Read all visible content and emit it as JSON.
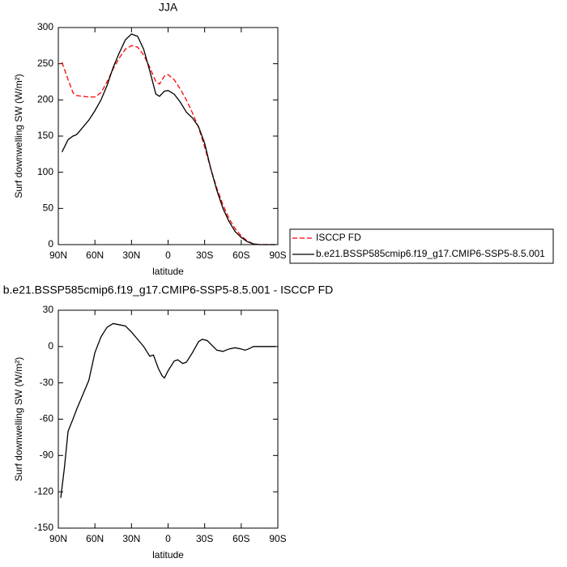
{
  "chart_data": [
    {
      "type": "line",
      "title": "JJA",
      "xlabel": "latitude",
      "ylabel": "Surf downwelling SW (W/m²)",
      "x": [
        87,
        82,
        78,
        75,
        70,
        65,
        60,
        55,
        50,
        45,
        40,
        35,
        30,
        25,
        20,
        15,
        10,
        7,
        3,
        0,
        -5,
        -10,
        -15,
        -20,
        -25,
        -30,
        -35,
        -40,
        -45,
        -50,
        -55,
        -60,
        -65,
        -70,
        -75,
        -80,
        -85,
        -88
      ],
      "series": [
        {
          "name": "ISCCP FD",
          "color": "#ff0000",
          "dashed": true,
          "values": [
            252,
            228,
            210,
            206,
            205,
            204,
            204,
            210,
            225,
            243,
            258,
            270,
            275,
            273,
            262,
            245,
            225,
            222,
            233,
            235,
            228,
            215,
            200,
            182,
            162,
            135,
            105,
            78,
            55,
            36,
            22,
            12,
            5,
            1,
            0,
            0,
            0,
            0
          ]
        },
        {
          "name": "b.e21.BSSP585cmip6.f19_g17.CMIP6-SSP5-8.5.001",
          "color": "#000000",
          "dashed": false,
          "values": [
            128,
            145,
            150,
            152,
            162,
            172,
            185,
            200,
            220,
            245,
            265,
            283,
            291,
            288,
            270,
            240,
            208,
            205,
            212,
            213,
            208,
            197,
            183,
            175,
            163,
            140,
            105,
            75,
            50,
            32,
            18,
            10,
            4,
            1,
            0,
            0,
            0,
            0
          ]
        }
      ],
      "xlim": [
        90,
        -90
      ],
      "xticks": [
        {
          "value": 90,
          "label": "90N"
        },
        {
          "value": 60,
          "label": "60N"
        },
        {
          "value": 30,
          "label": "30N"
        },
        0,
        {
          "value": -30,
          "label": "30S"
        },
        {
          "value": -60,
          "label": "60S"
        },
        {
          "value": -90,
          "label": "90S"
        }
      ],
      "ylim": [
        0,
        300
      ],
      "yticks": [
        0,
        50,
        100,
        150,
        200,
        250,
        300
      ],
      "legend": "right"
    },
    {
      "type": "line",
      "title": "b.e21.BSSP585cmip6.f19_g17.CMIP6-SSP5-8.5.001 - ISCCP FD",
      "xlabel": "latitude",
      "ylabel": "Surf downwelling SW (W/m²)",
      "x": [
        88,
        85,
        82,
        78,
        75,
        70,
        65,
        60,
        55,
        50,
        45,
        40,
        35,
        30,
        25,
        20,
        15,
        12,
        8,
        5,
        3,
        0,
        -5,
        -8,
        -12,
        -15,
        -20,
        -25,
        -28,
        -32,
        -35,
        -40,
        -45,
        -50,
        -55,
        -60,
        -63,
        -66,
        -70,
        -75,
        -80,
        -88
      ],
      "series": [
        {
          "color": "#000000",
          "dashed": false,
          "values": [
            -125,
            -100,
            -70,
            -60,
            -52,
            -40,
            -28,
            -5,
            8,
            16,
            19,
            18,
            17,
            12,
            6,
            0,
            -8,
            -7,
            -18,
            -24,
            -26,
            -20,
            -12,
            -11,
            -14,
            -13,
            -5,
            4,
            6,
            5,
            2,
            -3,
            -4,
            -2,
            -1,
            -2,
            -3,
            -2,
            0,
            0,
            0,
            0
          ]
        }
      ],
      "xlim": [
        90,
        -90
      ],
      "xticks": [
        {
          "value": 90,
          "label": "90N"
        },
        {
          "value": 60,
          "label": "60N"
        },
        {
          "value": 30,
          "label": "30N"
        },
        0,
        {
          "value": -30,
          "label": "30S"
        },
        {
          "value": -60,
          "label": "60S"
        },
        {
          "value": -90,
          "label": "90S"
        }
      ],
      "ylim": [
        -150,
        30
      ],
      "yticks": [
        -150,
        -120,
        -90,
        -60,
        -30,
        0,
        30
      ]
    }
  ]
}
